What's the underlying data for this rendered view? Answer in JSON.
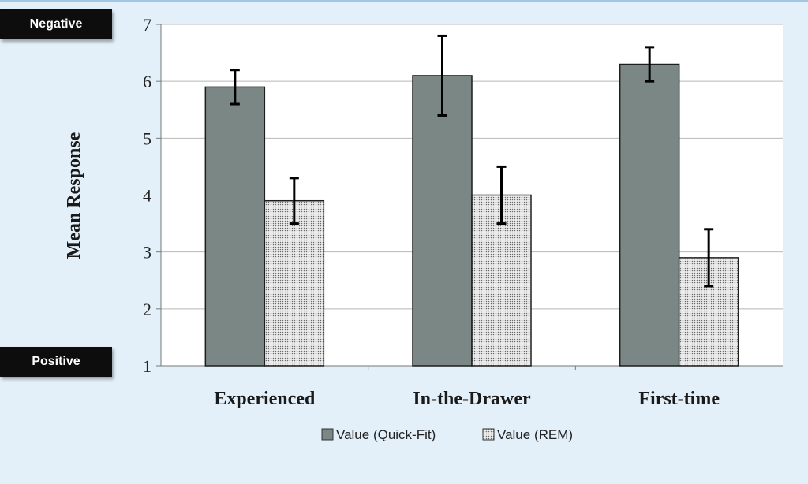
{
  "badges": {
    "negative": "Negative",
    "positive": "Positive"
  },
  "chart_data": {
    "type": "bar",
    "title": "",
    "xlabel": "",
    "ylabel": "Mean Response",
    "ylim": [
      1,
      7
    ],
    "yticks": [
      1,
      2,
      3,
      4,
      5,
      6,
      7
    ],
    "grid": true,
    "legend": "bottom-center",
    "categories": [
      "Experienced",
      "In-the-Drawer",
      "First-time"
    ],
    "series": [
      {
        "name": "Value (Quick-Fit)",
        "color": "#7a8785",
        "values": [
          5.9,
          6.1,
          6.3
        ],
        "error_low": [
          5.6,
          5.4,
          6.0
        ],
        "error_high": [
          6.2,
          6.8,
          6.6
        ]
      },
      {
        "name": "Value (REM)",
        "color": "#e0e0e0",
        "pattern": "dotted",
        "values": [
          3.9,
          4.0,
          2.9
        ],
        "error_low": [
          3.5,
          3.5,
          2.4
        ],
        "error_high": [
          4.3,
          4.5,
          3.4
        ]
      }
    ]
  }
}
